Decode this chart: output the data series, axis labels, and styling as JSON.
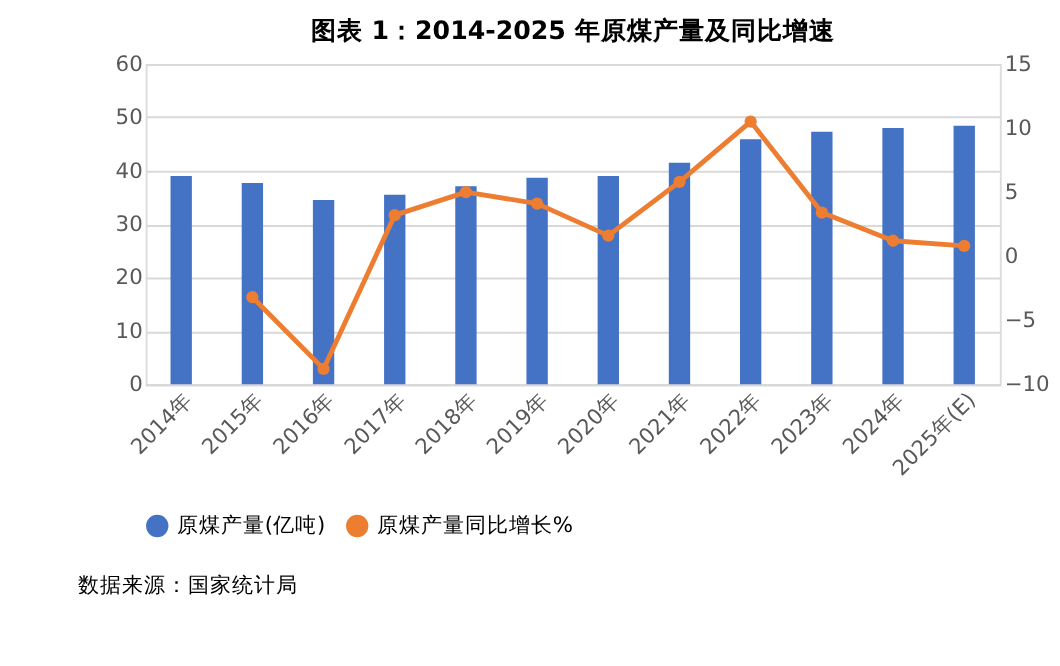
{
  "chart_data": {
    "type": "bar",
    "title": "图表 1：2014-2025 年原煤产量及同比增速",
    "categories": [
      "2014年",
      "2015年",
      "2016年",
      "2017年",
      "2018年",
      "2019年",
      "2020年",
      "2021年",
      "2022年",
      "2023年",
      "2024年",
      "2025年(E)"
    ],
    "series": [
      {
        "name": "原煤产量(亿吨)",
        "color": "#4472c4",
        "values": [
          39.0,
          37.7,
          34.5,
          35.5,
          37.1,
          38.7,
          39.0,
          41.5,
          45.9,
          47.3,
          48.0,
          48.4
        ]
      },
      {
        "name": "原煤产量同比增长%",
        "type": "line",
        "axis": "y2",
        "color": "#ed7d31",
        "marker": "circle",
        "values": [
          null,
          -3.2,
          -8.8,
          3.2,
          5.0,
          4.1,
          1.6,
          5.8,
          10.5,
          3.4,
          1.2,
          0.8
        ]
      }
    ],
    "ylim": [
      0,
      60
    ],
    "yticks": [
      0,
      10,
      20,
      30,
      40,
      50,
      60
    ],
    "y2lim": [
      -10,
      15
    ],
    "y2ticks": [
      -10,
      -5,
      0,
      5,
      10,
      15
    ],
    "grid": "y",
    "legend": "bottom",
    "annotations": [
      "数据来源：国家统计局"
    ]
  }
}
